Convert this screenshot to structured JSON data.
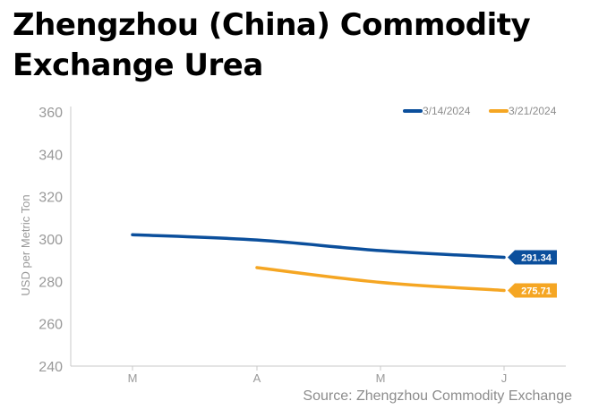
{
  "title_line1": "Zhengzhou (China) Commodity",
  "title_line2": "Exchange Urea",
  "source": "Source: Zhengzhou Commodity Exchange",
  "colors": {
    "series_1": "#0b4f9c",
    "series_2": "#f5a623",
    "axis": "#c8c8c8",
    "tick_text": "#999999"
  },
  "chart_data": {
    "type": "line",
    "categories": [
      "M",
      "A",
      "M",
      "J"
    ],
    "ylabel": "USD per Metric Ton",
    "ylim": [
      240,
      360
    ],
    "yticks": [
      240,
      260,
      280,
      300,
      320,
      340,
      360
    ],
    "grid": false,
    "legend_position": "top-right",
    "series": [
      {
        "name": "3/14/2024",
        "values": [
          302,
          299.5,
          294.5,
          291.34
        ],
        "end_label": "291.34"
      },
      {
        "name": "3/21/2024",
        "values": [
          null,
          286.5,
          279.5,
          275.71
        ],
        "end_label": "275.71"
      }
    ]
  }
}
